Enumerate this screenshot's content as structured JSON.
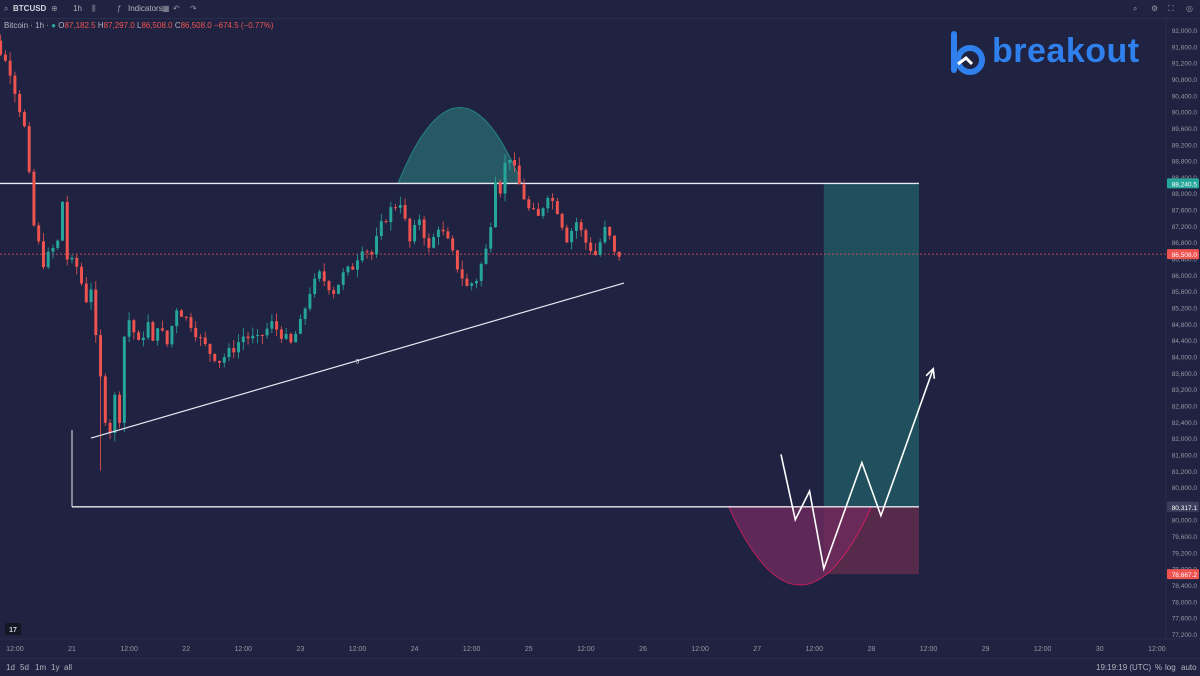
{
  "toolbar": {
    "symbol": "BTCUSD",
    "add_icon": "plus-circle-icon",
    "interval": "1h",
    "indicators_label": "Indicators",
    "undo_icon": "undo-icon",
    "redo_icon": "redo-icon"
  },
  "legend": {
    "name": "Bitcoin · 1h · ",
    "open_key": "O",
    "open": "87,182.5",
    "high_key": "H",
    "high": "87,297.0",
    "low_key": "L",
    "low": "86,508.0",
    "close_key": "C",
    "close": "86,508.0",
    "change": "−674.5 (−0.77%)"
  },
  "logo": {
    "text": "breakout",
    "color": "#2f80ed"
  },
  "bottombar": {
    "ranges": [
      "1d",
      "5d",
      "1m",
      "1y",
      "all"
    ],
    "time": "19:19:19 (UTC)",
    "percent": "%",
    "log": "log",
    "auto": "auto"
  },
  "colors": {
    "background": "#1f2341",
    "up": "#26a69a",
    "down": "#ef5350",
    "resistance_zone": "#21535f",
    "stop_zone": "#5a2b4b",
    "lines": "#e8e8f0"
  },
  "chart_data": {
    "type": "candlestick",
    "symbol": "BTCUSD",
    "interval": "1h",
    "y_ticks": [
      92000,
      91600,
      91200,
      90800,
      90400,
      90000,
      89600,
      89200,
      88800,
      88400,
      88000,
      87600,
      87200,
      86800,
      86400,
      86000,
      85600,
      85200,
      84800,
      84400,
      84000,
      83600,
      83200,
      82800,
      82400,
      82000,
      81600,
      81200,
      80800,
      80400,
      80000,
      79600,
      79200,
      78800,
      78400,
      78000,
      77600,
      77200
    ],
    "y_range": [
      76900,
      92300
    ],
    "x_labels": [
      {
        "label": "12:00",
        "hour": -12
      },
      {
        "label": "21",
        "hour": 0
      },
      {
        "label": "12:00",
        "hour": 12
      },
      {
        "label": "22",
        "hour": 24
      },
      {
        "label": "12:00",
        "hour": 36
      },
      {
        "label": "23",
        "hour": 48
      },
      {
        "label": "12:00",
        "hour": 60
      },
      {
        "label": "24",
        "hour": 72
      },
      {
        "label": "12:00",
        "hour": 84
      },
      {
        "label": "25",
        "hour": 96
      },
      {
        "label": "12:00",
        "hour": 108
      },
      {
        "label": "26",
        "hour": 120
      },
      {
        "label": "12:00",
        "hour": 132
      },
      {
        "label": "27",
        "hour": 144
      },
      {
        "label": "12:00",
        "hour": 156
      },
      {
        "label": "28",
        "hour": 168
      },
      {
        "label": "12:00",
        "hour": 180
      },
      {
        "label": "29",
        "hour": 192
      },
      {
        "label": "12:00",
        "hour": 204
      },
      {
        "label": "30",
        "hour": 216
      },
      {
        "label": "12:00",
        "hour": 228
      }
    ],
    "key_path": [
      [
        -20,
        92000
      ],
      [
        -15,
        91700
      ],
      [
        -12,
        91000
      ],
      [
        -9,
        89600
      ],
      [
        -7,
        87200
      ],
      [
        -5,
        86300
      ],
      [
        -2,
        86800
      ],
      [
        -1,
        87800
      ],
      [
        0,
        86400
      ],
      [
        2,
        86200
      ],
      [
        4,
        85400
      ],
      [
        5,
        85700
      ],
      [
        6,
        84400
      ],
      [
        8,
        82500
      ],
      [
        9,
        82200
      ],
      [
        10,
        83000
      ],
      [
        11,
        82500
      ],
      [
        12,
        84500
      ],
      [
        13,
        84900
      ],
      [
        15,
        84300
      ],
      [
        17,
        84800
      ],
      [
        18,
        84300
      ],
      [
        19,
        84800
      ],
      [
        21,
        84300
      ],
      [
        23,
        85200
      ],
      [
        26,
        84800
      ],
      [
        28,
        84400
      ],
      [
        30,
        84100
      ],
      [
        32,
        83900
      ],
      [
        35,
        84200
      ],
      [
        37,
        84500
      ],
      [
        40,
        84400
      ],
      [
        43,
        84800
      ],
      [
        47,
        84300
      ],
      [
        49,
        84800
      ],
      [
        51,
        85600
      ],
      [
        53,
        86000
      ],
      [
        56,
        85600
      ],
      [
        58,
        86000
      ],
      [
        60,
        86200
      ],
      [
        62,
        86700
      ],
      [
        64,
        86500
      ],
      [
        66,
        87200
      ],
      [
        68,
        87600
      ],
      [
        70,
        87800
      ],
      [
        72,
        86800
      ],
      [
        74,
        87400
      ],
      [
        76,
        86600
      ],
      [
        78,
        87200
      ],
      [
        80,
        86800
      ],
      [
        82,
        86200
      ],
      [
        84,
        85700
      ],
      [
        86,
        85900
      ],
      [
        88,
        86600
      ],
      [
        89,
        87300
      ],
      [
        90,
        88400
      ],
      [
        91,
        88100
      ],
      [
        92,
        88700
      ],
      [
        93,
        88900
      ],
      [
        95,
        88200
      ],
      [
        97,
        87600
      ],
      [
        99,
        87400
      ],
      [
        101,
        88000
      ],
      [
        103,
        87600
      ],
      [
        105,
        86900
      ],
      [
        107,
        87300
      ],
      [
        109,
        86800
      ],
      [
        111,
        86500
      ],
      [
        113,
        87100
      ],
      [
        114,
        86900
      ],
      [
        115,
        86500
      ]
    ],
    "annotations": {
      "resistance": 88240.5,
      "support": 80317.1,
      "stop": 78667.2,
      "trendline": [
        [
          4,
          82000
        ],
        [
          116,
          85800
        ]
      ],
      "trendline_label": "5",
      "resistance_arc_peak": 90100,
      "support_arc_bottom": 78400,
      "projection_path": [
        [
          149,
          81600
        ],
        [
          152,
          80000
        ],
        [
          155,
          80700
        ],
        [
          158,
          78800
        ],
        [
          166,
          81400
        ],
        [
          170,
          80100
        ],
        [
          181,
          83700
        ]
      ],
      "resistance_arc_hours": [
        68.5,
        94.5
      ],
      "support_arc_hours": [
        138,
        168
      ],
      "target_zone": {
        "from_hour": 158,
        "to_hour": 178,
        "top": 88240.5,
        "bottom": 80317.1
      },
      "stop_zone": {
        "from_hour": 158,
        "to_hour": 178,
        "top": 80317.1,
        "bottom": 78667.2
      },
      "resistance_line_hours": [
        -20,
        178
      ],
      "support_line_hours": [
        0,
        178
      ]
    },
    "price_tags": [
      {
        "value": "88,240.5",
        "color": "#26a69a",
        "at": 88240.5
      },
      {
        "value": "86,508.0",
        "color": "#ef5350",
        "at": 86508
      },
      {
        "value": "80,317.1",
        "color": "#3b3f5c",
        "at": 80317.1
      },
      {
        "value": "78,667.2",
        "color": "#ef5350",
        "at": 78667.2
      }
    ],
    "current_price": 86508.0
  }
}
